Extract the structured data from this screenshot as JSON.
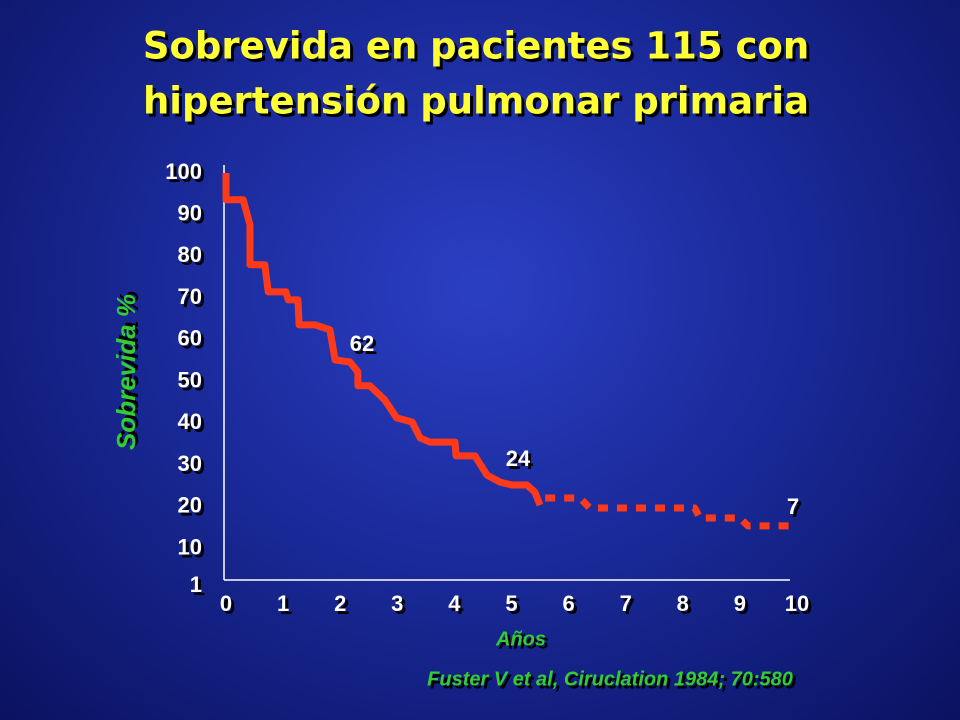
{
  "chart_data": {
    "type": "line",
    "title": [
      "Sobrevida en pacientes 115 con",
      "hipertensión pulmonar primaria"
    ],
    "y_label": "Sobrevida %",
    "x_label": "Años",
    "source": "Fuster V et al, Ciruclation 1984; 70:580",
    "annotations": [
      "62",
      "24",
      "7"
    ],
    "xlim": [
      0,
      10
    ],
    "xticks": [
      0,
      1,
      2,
      3,
      4,
      5,
      6,
      7,
      8,
      9,
      10
    ],
    "ylim": [
      1,
      100
    ],
    "yticks": [
      1,
      10,
      20,
      30,
      40,
      50,
      60,
      70,
      80,
      90,
      100
    ],
    "series": [
      {
        "color": "#ff3a1a",
        "line_style": "solid",
        "x": [
          0,
          0,
          0.3,
          0.42,
          0.42,
          0.68,
          0.74,
          1.05,
          1.09,
          1.26,
          1.28,
          1.56,
          1.82,
          1.91,
          2.17,
          2.31,
          2.31,
          2.52,
          2.78,
          2.99,
          3.26,
          3.4,
          3.57,
          4.01,
          4.03,
          4.36,
          4.57,
          4.8,
          5.01,
          5.27,
          5.41,
          5.5
        ],
        "values": [
          100,
          93.6,
          93.6,
          87.6,
          78.0,
          78.0,
          71.5,
          71.5,
          69.6,
          69.6,
          63.6,
          63.6,
          62.4,
          55.2,
          54.7,
          52.3,
          49.0,
          49.0,
          45.6,
          41.3,
          40.3,
          36.5,
          35.5,
          35.5,
          32.2,
          32.2,
          27.6,
          25.9,
          25.2,
          25.2,
          23.5,
          20.4
        ]
      },
      {
        "color": "#ff3a1a",
        "line_style": "dotted",
        "x": [
          5.59,
          6.2,
          6.37,
          8.21,
          8.3,
          9.0,
          9.14,
          10
        ],
        "values": [
          22.1,
          22.1,
          19.7,
          19.7,
          17.3,
          17.3,
          15.4,
          15.4
        ]
      }
    ]
  }
}
